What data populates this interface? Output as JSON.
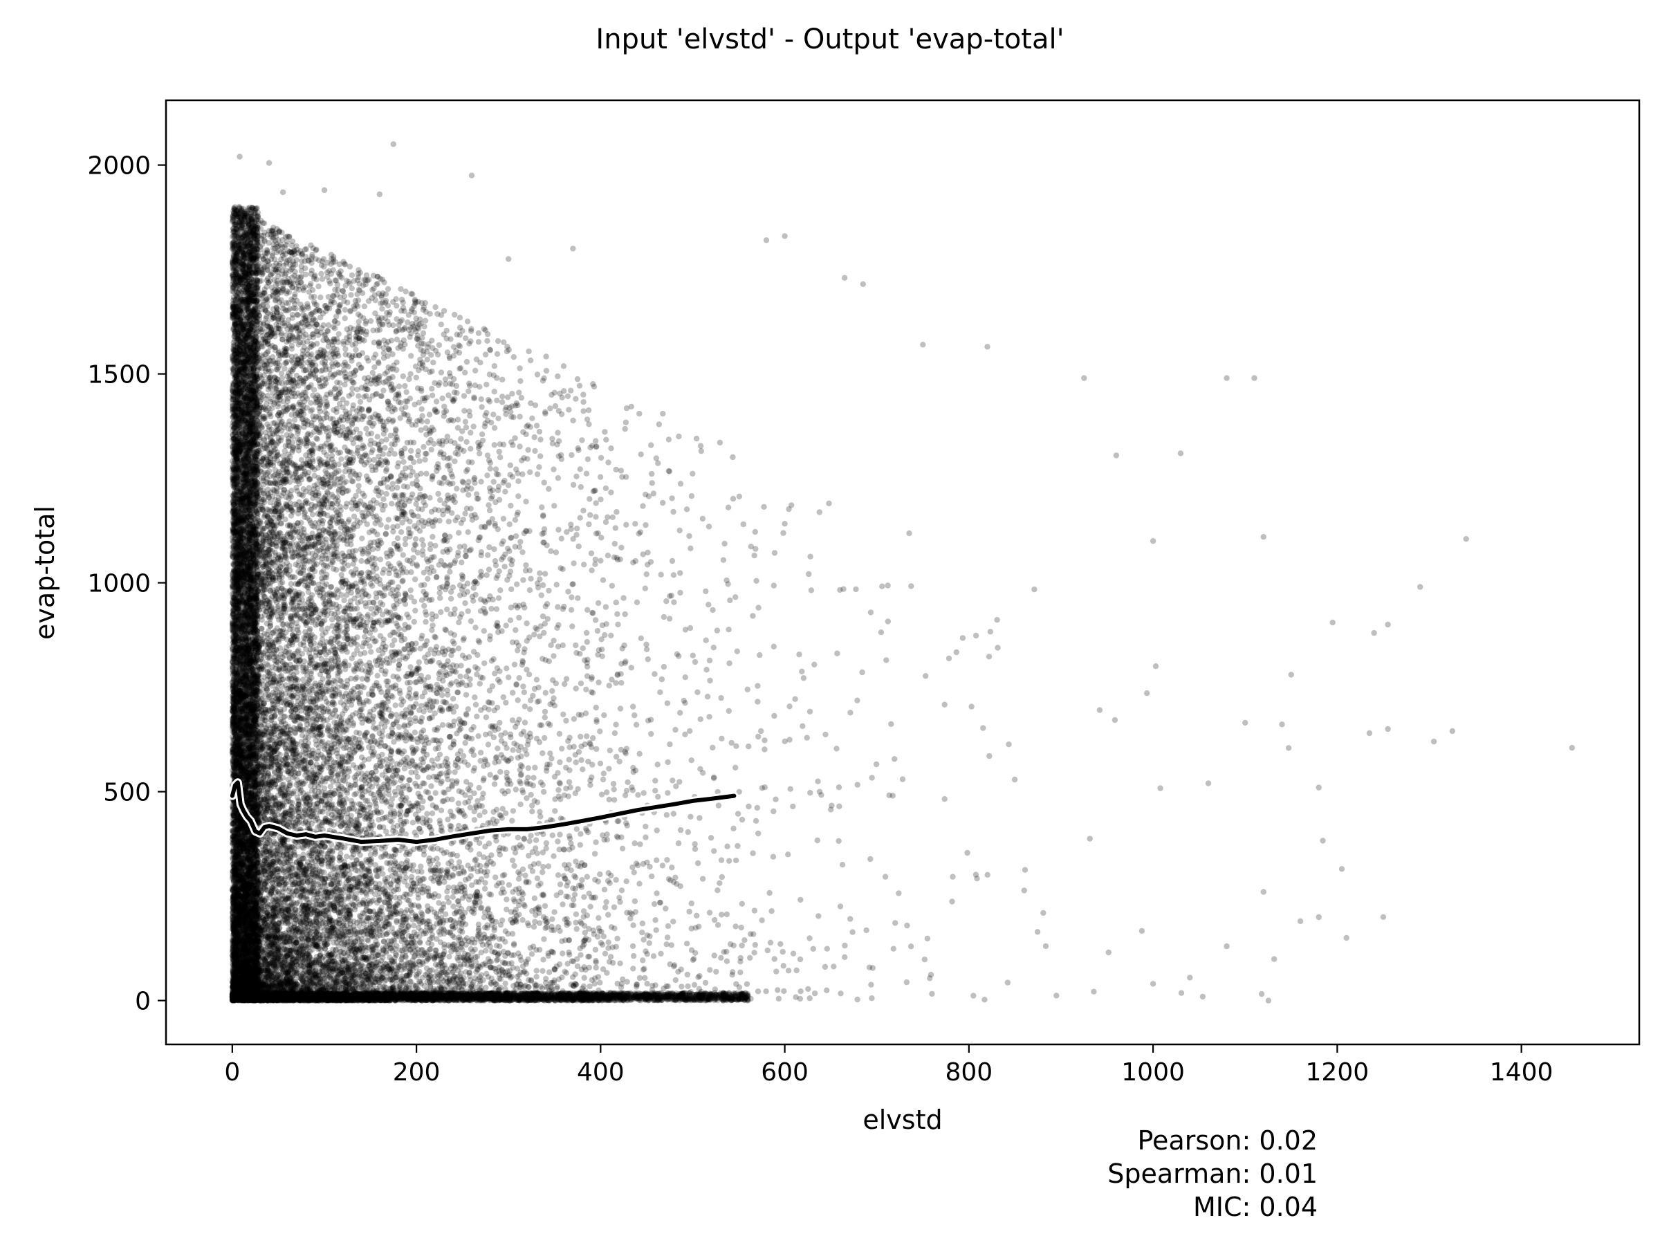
{
  "chart_data": {
    "type": "scatter",
    "title": "Input 'elvstd' - Output 'evap-total'",
    "xlabel": "elvstd",
    "ylabel": "evap-total",
    "xlim": [
      -72,
      1528
    ],
    "ylim": [
      -105,
      2155
    ],
    "xticks": [
      0,
      200,
      400,
      600,
      800,
      1000,
      1200,
      1400
    ],
    "yticks": [
      0,
      500,
      1000,
      1500,
      2000
    ],
    "grid": false,
    "point_color": "#000000",
    "point_opacity": 0.25,
    "trend_line": {
      "x": [
        0,
        3,
        6,
        9,
        12,
        16,
        20,
        25,
        30,
        35,
        40,
        50,
        60,
        70,
        80,
        90,
        100,
        120,
        140,
        160,
        180,
        200,
        220,
        240,
        260,
        280,
        300,
        320,
        340,
        360,
        380,
        400,
        420,
        440,
        460,
        480,
        500,
        520,
        545
      ],
      "y": [
        490,
        515,
        522,
        470,
        455,
        440,
        430,
        405,
        400,
        415,
        418,
        412,
        400,
        395,
        398,
        392,
        395,
        388,
        380,
        382,
        385,
        380,
        385,
        393,
        400,
        407,
        410,
        410,
        415,
        422,
        430,
        438,
        447,
        456,
        463,
        470,
        478,
        483,
        490
      ],
      "color": "#000000",
      "outline_color": "#ffffff"
    },
    "stats": [
      {
        "label": "Pearson:",
        "value": "0.02"
      },
      {
        "label": "Spearman:",
        "value": "0.01"
      },
      {
        "label": "MIC:",
        "value": "0.04"
      }
    ],
    "sample_points": [
      [
        8,
        2020
      ],
      [
        40,
        2005
      ],
      [
        175,
        2050
      ],
      [
        260,
        1975
      ],
      [
        100,
        1940
      ],
      [
        160,
        1930
      ],
      [
        55,
        1935
      ],
      [
        300,
        1775
      ],
      [
        370,
        1800
      ],
      [
        580,
        1820
      ],
      [
        600,
        1830
      ],
      [
        685,
        1715
      ],
      [
        665,
        1730
      ],
      [
        750,
        1570
      ],
      [
        820,
        1565
      ],
      [
        925,
        1490
      ],
      [
        1080,
        1490
      ],
      [
        1110,
        1490
      ],
      [
        960,
        1305
      ],
      [
        1030,
        1310
      ],
      [
        1120,
        1110
      ],
      [
        1000,
        1100
      ],
      [
        1340,
        1105
      ],
      [
        1290,
        990
      ],
      [
        1195,
        905
      ],
      [
        1240,
        880
      ],
      [
        1255,
        900
      ],
      [
        1455,
        605
      ],
      [
        1305,
        620
      ],
      [
        1325,
        645
      ],
      [
        1235,
        640
      ],
      [
        1255,
        650
      ],
      [
        1180,
        510
      ],
      [
        1205,
        315
      ],
      [
        1250,
        200
      ],
      [
        1210,
        150
      ],
      [
        1120,
        260
      ],
      [
        1160,
        190
      ],
      [
        1080,
        130
      ],
      [
        1000,
        40
      ],
      [
        1040,
        55
      ],
      [
        1060,
        520
      ],
      [
        1150,
        780
      ],
      [
        1100,
        665
      ]
    ]
  }
}
